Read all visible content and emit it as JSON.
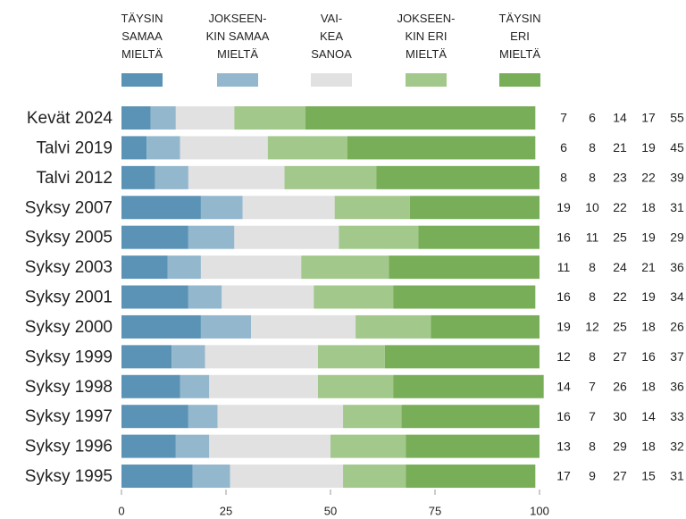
{
  "chart_data": {
    "type": "stacked-barh",
    "categories": [
      "Kevät 2024",
      "Talvi 2019",
      "Talvi 2012",
      "Syksy 2007",
      "Syksy 2005",
      "Syksy 2003",
      "Syksy 2001",
      "Syksy 2000",
      "Syksy 1999",
      "Syksy 1998",
      "Syksy 1997",
      "Syksy 1996",
      "Syksy 1995"
    ],
    "series": [
      {
        "name": "TÄYSIN\nSAMAA\nMIELTÄ",
        "color": "#5b93b6",
        "values": [
          7,
          6,
          8,
          19,
          16,
          11,
          16,
          19,
          12,
          14,
          16,
          13,
          17
        ]
      },
      {
        "name": "JOKSEEN-\nKIN SAMAA\nMIELTÄ",
        "color": "#93b7cd",
        "values": [
          6,
          8,
          8,
          10,
          11,
          8,
          8,
          12,
          8,
          7,
          7,
          8,
          9
        ]
      },
      {
        "name": "VAI-\nKEA\nSANOA",
        "color": "#e1e1e1",
        "values": [
          14,
          21,
          23,
          22,
          25,
          24,
          22,
          25,
          27,
          26,
          30,
          29,
          27
        ]
      },
      {
        "name": "JOKSEEN-\nKIN ERI\nMIELTÄ",
        "color": "#a3c88b",
        "values": [
          17,
          19,
          22,
          18,
          19,
          21,
          19,
          18,
          16,
          18,
          14,
          18,
          15
        ]
      },
      {
        "name": "TÄYSIN\nERI\nMIELTÄ",
        "color": "#78ae58",
        "values": [
          55,
          45,
          39,
          31,
          29,
          36,
          34,
          26,
          37,
          36,
          33,
          32,
          31
        ]
      }
    ],
    "xlim": [
      0,
      100
    ],
    "xticks": [
      0,
      25,
      50,
      75,
      100
    ]
  }
}
